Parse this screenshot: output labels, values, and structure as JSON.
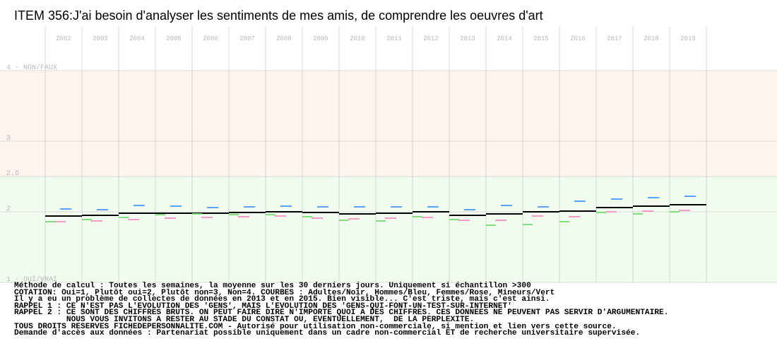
{
  "title": "ITEM 356:J'ai besoin d'analyser les sentiments de mes amis, de comprendre les oeuvres d'art",
  "colors": {
    "band_non": "#fdf3ef",
    "band_oui": "#f1fbee",
    "grid": "#d8d8d8",
    "year_label": "#b8b8b8",
    "y_label": "#b8b8b8",
    "adultes": "#000000",
    "hommes": "#5aa0ff",
    "femmes": "#f29ac8",
    "mineurs": "#7ee07a"
  },
  "chart_data": {
    "type": "line",
    "x": [
      "2002",
      "2003",
      "2004",
      "2005",
      "2006",
      "2007",
      "2008",
      "2009",
      "2010",
      "2011",
      "2012",
      "2013",
      "2014",
      "2015",
      "2016",
      "2017",
      "2018",
      "2019"
    ],
    "ylim": [
      1,
      4
    ],
    "y_inverted": true,
    "y_ticks": [
      {
        "value": 4,
        "label": "4 - NON/FAUX"
      },
      {
        "value": 3,
        "label": "3"
      },
      {
        "value": 2.5,
        "label": "2.5"
      },
      {
        "value": 2,
        "label": "2"
      },
      {
        "value": 1,
        "label": "1 - OUI/VRAI"
      }
    ],
    "grid": true,
    "bands": [
      {
        "from": 2.5,
        "to": 4,
        "color": "#fdf3ef"
      },
      {
        "from": 1,
        "to": 2.5,
        "color": "#f1fbee"
      }
    ],
    "series": [
      {
        "name": "Adultes",
        "color": "#000000",
        "values": [
          1.94,
          1.95,
          1.98,
          1.98,
          1.98,
          1.99,
          2.0,
          1.99,
          1.97,
          1.98,
          2.0,
          1.95,
          1.97,
          2.0,
          2.01,
          2.06,
          2.08,
          2.1
        ]
      },
      {
        "name": "Hommes",
        "color": "#5aa0ff",
        "values": [
          2.04,
          2.03,
          2.09,
          2.08,
          2.06,
          2.07,
          2.08,
          2.07,
          2.07,
          2.07,
          2.07,
          2.03,
          2.09,
          2.07,
          2.15,
          2.18,
          2.2,
          2.22
        ]
      },
      {
        "name": "Femmes",
        "color": "#f29ac8",
        "values": [
          1.86,
          1.87,
          1.89,
          1.91,
          1.92,
          1.93,
          1.94,
          1.91,
          1.9,
          1.91,
          1.92,
          1.88,
          1.88,
          1.94,
          1.93,
          2.0,
          2.01,
          2.02
        ]
      },
      {
        "name": "Mineurs",
        "color": "#7ee07a",
        "values": [
          1.86,
          1.89,
          1.92,
          1.96,
          1.97,
          1.96,
          1.96,
          1.93,
          1.88,
          1.87,
          1.93,
          1.89,
          1.81,
          1.82,
          1.86,
          1.99,
          1.97,
          2.0
        ]
      }
    ]
  },
  "notes": [
    "Méthode de calcul : Toutes les semaines, la moyenne sur les 30 derniers jours. Uniquement si échantillon >300",
    "COTATION: Oui=1, Plutôt oui=2, Plutôt non=3, Non=4. COURBES : Adultes/Noir, Hommes/Bleu, Femmes/Rose, Mineurs/Vert",
    "Il y a eu un problème de collectes de données en 2013 et en 2015. Bien visible... C'est triste, mais c'est ainsi.",
    "RAPPEL 1 : CE N'EST PAS L'EVOLUTION DES 'GENS', MAIS L'EVOLUTION DES 'GENS-QUI-FONT-UN-TEST-SUR-INTERNET'",
    "RAPPEL 2 : CE SONT DES CHIFFRES BRUTS. ON PEUT FAIRE DIRE N'IMPORTE QUOI A DES CHIFFRES. CES DONNEES NE PEUVENT PAS SERVIR D'ARGUMENTAIRE.",
    "           NOUS VOUS INVITONS A RESTER AU STADE DU CONSTAT OU, EVENTUELLEMENT,  DE LA PERPLEXITE.",
    "TOUS DROITS RESERVES FICHEDEPERSONNALITE.COM - Autorisé pour utilisation non-commerciale, si mention et lien vers cette source.",
    "Demande d'accès aux données : Partenariat possible uniquement dans un cadre non-commercial ET de recherche universitaire supervisée."
  ]
}
